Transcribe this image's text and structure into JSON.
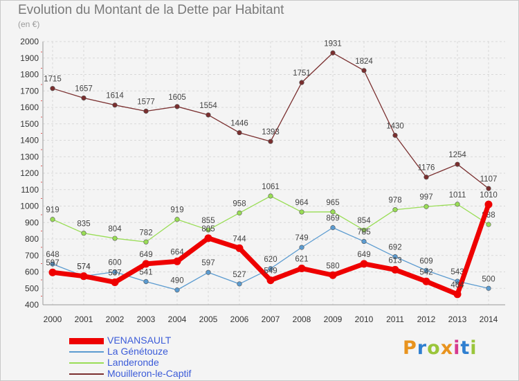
{
  "header": {
    "title": "Evolution du Montant de la Dette par Habitant",
    "subtitle": "(en €)"
  },
  "logo": {
    "text": "Proxiti",
    "colors": [
      "#e8931e",
      "#2f7fd0",
      "#9ac53a",
      "#e8931e",
      "#d63a8f",
      "#2f7fd0",
      "#9ac53a"
    ]
  },
  "chart_data": {
    "type": "line",
    "title": "Evolution du Montant de la Dette par Habitant",
    "subtitle": "(en €)",
    "xlabel": "",
    "ylabel": "",
    "ylim": [
      400,
      2000
    ],
    "yticks": [
      400,
      500,
      600,
      700,
      800,
      900,
      1000,
      1100,
      1200,
      1300,
      1400,
      1500,
      1600,
      1700,
      1800,
      1900,
      2000
    ],
    "x": [
      "2000",
      "2001",
      "2002",
      "2003",
      "2004",
      "2005",
      "2006",
      "2007",
      "2008",
      "2009",
      "2010",
      "2011",
      "2012",
      "2013",
      "2014"
    ],
    "grid": true,
    "legend_position": "bottom-left",
    "series": [
      {
        "name": "VENANSAULT",
        "color": "#ee0000",
        "values": [
          597,
          574,
          537,
          649,
          664,
          805,
          744,
          549,
          621,
          580,
          649,
          613,
          542,
          464,
          1010
        ]
      },
      {
        "name": "La Génétouze",
        "color": "#5b9bd0",
        "values": [
          648,
          574,
          600,
          541,
          490,
          597,
          527,
          620,
          749,
          869,
          785,
          692,
          609,
          543,
          500
        ]
      },
      {
        "name": "Landeronde",
        "color": "#99dd55",
        "values": [
          919,
          835,
          804,
          782,
          919,
          855,
          958,
          1061,
          964,
          965,
          854,
          978,
          997,
          1011,
          888
        ]
      },
      {
        "name": "Mouilleron-le-Captif",
        "color": "#7a2f2f",
        "values": [
          1715,
          1657,
          1614,
          1577,
          1605,
          1554,
          1446,
          1393,
          1751,
          1931,
          1824,
          1430,
          1176,
          1254,
          1107
        ]
      }
    ]
  }
}
